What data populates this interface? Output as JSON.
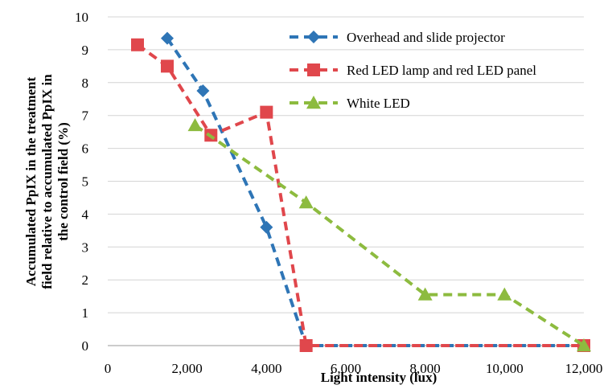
{
  "chart_data": {
    "type": "line",
    "title": "",
    "xlabel": "Light intensity (lux)",
    "ylabel_lines": [
      "Accumulated PpIX in the treatment",
      "field relative to accumulated PpIX in",
      "the control field  (%)"
    ],
    "xlim": [
      0,
      12000
    ],
    "ylim": [
      0,
      10
    ],
    "x_ticks": [
      0,
      2000,
      4000,
      6000,
      8000,
      10000,
      12000
    ],
    "x_tick_labels": [
      "0",
      "2,000",
      "4,000",
      "6,000",
      "8,000",
      "10,000",
      "12,000"
    ],
    "y_ticks": [
      0,
      1,
      2,
      3,
      4,
      5,
      6,
      7,
      8,
      9,
      10
    ],
    "y_tick_labels": [
      "0",
      "1",
      "2",
      "3",
      "4",
      "5",
      "6",
      "7",
      "8",
      "9",
      "10"
    ],
    "grid": "horizontal",
    "legend_position": "top-right",
    "series": [
      {
        "name": "Overhead and slide projector",
        "color": "#2E75B6",
        "marker": "diamond",
        "line_style": "dashed",
        "x": [
          1500,
          2400,
          4000,
          5000,
          12000
        ],
        "y": [
          9.35,
          7.75,
          3.6,
          0,
          0
        ]
      },
      {
        "name": "Red LED lamp and red LED panel",
        "color": "#E0474C",
        "marker": "square",
        "line_style": "dashed",
        "x": [
          750,
          1500,
          2600,
          4000,
          5000,
          12000
        ],
        "y": [
          9.15,
          8.5,
          6.4,
          7.1,
          0,
          0
        ]
      },
      {
        "name": "White LED",
        "color": "#8DBB3F",
        "marker": "triangle",
        "line_style": "dashed",
        "x": [
          2200,
          5000,
          8000,
          10000,
          12000
        ],
        "y": [
          6.7,
          4.35,
          1.55,
          1.55,
          0
        ]
      }
    ]
  }
}
